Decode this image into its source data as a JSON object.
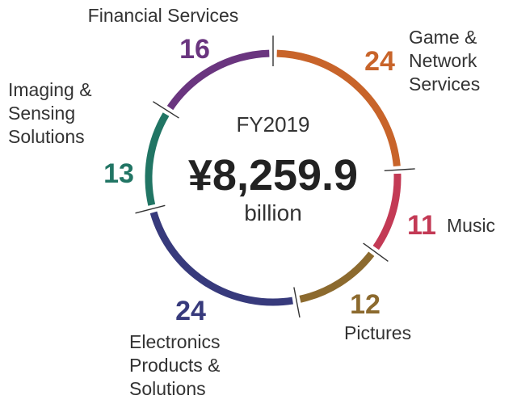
{
  "chart_data": {
    "type": "donut",
    "title": "FY2019",
    "total": "¥8,259.9",
    "total_unit": "billion",
    "unit": "%",
    "segments": [
      {
        "name": "Game & Network Services",
        "name_lines": [
          "Game &",
          "Network",
          "Services"
        ],
        "value": 24,
        "color": "#c8642a"
      },
      {
        "name": "Music",
        "name_lines": [
          "Music"
        ],
        "value": 11,
        "color": "#c33a55"
      },
      {
        "name": "Pictures",
        "name_lines": [
          "Pictures"
        ],
        "value": 12,
        "color": "#8c6a2e"
      },
      {
        "name": "Electronics Products & Solutions",
        "name_lines": [
          "Electronics",
          "Products &",
          "Solutions"
        ],
        "value": 24,
        "color": "#373a7c"
      },
      {
        "name": "Imaging & Sensing Solutions",
        "name_lines": [
          "Imaging &",
          "Sensing",
          "Solutions"
        ],
        "value": 13,
        "color": "#217564"
      },
      {
        "name": "Financial Services",
        "name_lines": [
          "Financial Services"
        ],
        "value": 16,
        "color": "#6a357f"
      }
    ]
  }
}
